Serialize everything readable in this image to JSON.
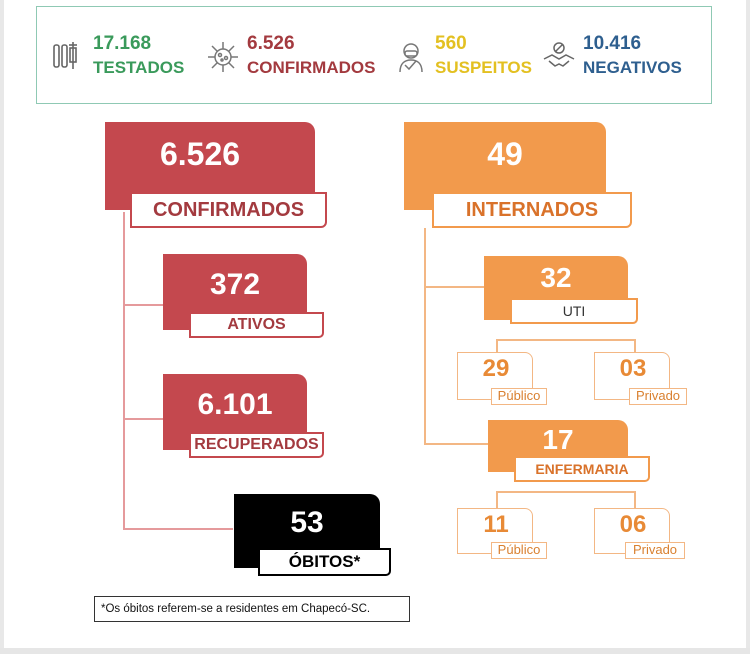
{
  "summary": {
    "testados": {
      "value": "17.168",
      "label": "TESTADOS",
      "color": "#3a9a5b",
      "icon": "test-tubes-icon"
    },
    "confirmados": {
      "value": "6.526",
      "label": "CONFIRMADOS",
      "color": "#a33a3f",
      "icon": "virus-icon"
    },
    "suspeitos": {
      "value": "560",
      "label": "SUSPEITOS",
      "color": "#e3c021",
      "icon": "masked-person-icon"
    },
    "negativos": {
      "value": "10.416",
      "label": "NEGATIVOS",
      "color": "#2e5f8f",
      "icon": "handshake-icon"
    }
  },
  "left": {
    "confirmados": {
      "value": "6.526",
      "label": "CONFIRMADOS"
    },
    "ativos": {
      "value": "372",
      "label": "ATIVOS"
    },
    "recuperados": {
      "value": "6.101",
      "label": "RECUPERADOS"
    },
    "obitos": {
      "value": "53",
      "label": "ÓBITOS*"
    }
  },
  "right": {
    "internados": {
      "value": "49",
      "label": "INTERNADOS"
    },
    "uti": {
      "value": "32",
      "label": "UTI",
      "publico": {
        "value": "29",
        "label": "Público"
      },
      "privado": {
        "value": "03",
        "label": "Privado"
      }
    },
    "enfermaria": {
      "value": "17",
      "label": "ENFERMARIA",
      "publico": {
        "value": "11",
        "label": "Público"
      },
      "privado": {
        "value": "06",
        "label": "Privado"
      }
    }
  },
  "note": "*Os óbitos referem-se a residentes em Chapecó-SC.",
  "colors": {
    "red": "#c4484e",
    "orange": "#f29a4c",
    "black": "#000000",
    "light_orange": "#f3b784"
  }
}
